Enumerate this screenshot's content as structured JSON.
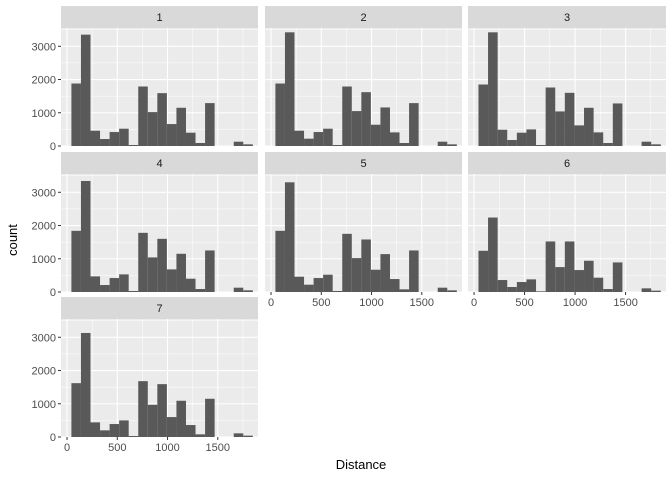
{
  "chart_data": {
    "type": "bar",
    "subtype": "faceted histogram",
    "xlabel": "Distance",
    "ylabel": "count",
    "xlim": [
      -60,
      1900
    ],
    "ylim": [
      0,
      3550
    ],
    "x_ticks": [
      0,
      500,
      1000,
      1500
    ],
    "x_tick_labels": [
      "0",
      "500",
      "1000",
      "1500"
    ],
    "y_ticks": [
      0,
      1000,
      2000,
      3000
    ],
    "y_tick_labels": [
      "0",
      "1000",
      "2000",
      "3000"
    ],
    "grid": true,
    "bin_width": 95,
    "bin_centers": [
      91,
      186,
      281,
      376,
      471,
      566,
      661,
      756,
      851,
      946,
      1041,
      1136,
      1231,
      1326,
      1421,
      1516,
      1611,
      1706,
      1801
    ],
    "facets": [
      {
        "label": "1",
        "values": [
          1880,
          3350,
          460,
          210,
          420,
          520,
          30,
          1790,
          1020,
          1590,
          660,
          1150,
          400,
          90,
          1290,
          0,
          0,
          130,
          50
        ]
      },
      {
        "label": "2",
        "values": [
          1880,
          3420,
          460,
          220,
          420,
          520,
          30,
          1790,
          1050,
          1620,
          640,
          1160,
          410,
          90,
          1290,
          0,
          0,
          130,
          50
        ]
      },
      {
        "label": "3",
        "values": [
          1850,
          3420,
          490,
          180,
          400,
          500,
          30,
          1760,
          1040,
          1600,
          620,
          1150,
          410,
          90,
          1280,
          0,
          0,
          130,
          50
        ]
      },
      {
        "label": "4",
        "values": [
          1840,
          3340,
          470,
          210,
          420,
          530,
          30,
          1780,
          1040,
          1600,
          680,
          1150,
          400,
          90,
          1250,
          0,
          0,
          130,
          50
        ]
      },
      {
        "label": "5",
        "values": [
          1840,
          3300,
          460,
          220,
          420,
          520,
          30,
          1750,
          1020,
          1580,
          670,
          1140,
          390,
          80,
          1250,
          0,
          0,
          130,
          50
        ]
      },
      {
        "label": "6",
        "values": [
          1240,
          2240,
          360,
          150,
          300,
          380,
          20,
          1520,
          750,
          1520,
          660,
          940,
          430,
          90,
          890,
          0,
          0,
          110,
          40
        ]
      },
      {
        "label": "7",
        "values": [
          1620,
          3130,
          440,
          200,
          390,
          500,
          30,
          1680,
          970,
          1590,
          600,
          1090,
          360,
          80,
          1150,
          0,
          0,
          110,
          40
        ]
      }
    ]
  },
  "colors": {
    "panel_background": "#ebebeb",
    "strip_background": "#d9d9d9",
    "grid_major": "#ffffff",
    "bar_fill": "#595959",
    "tick_color": "#333333"
  }
}
